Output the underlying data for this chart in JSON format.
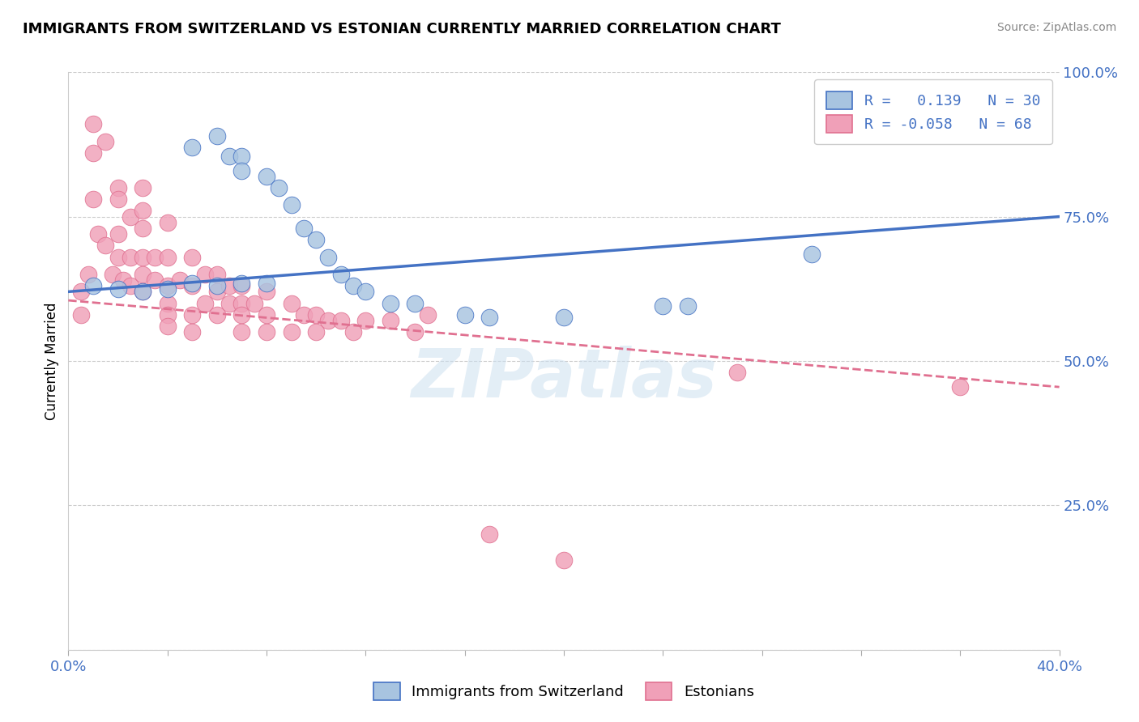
{
  "title": "IMMIGRANTS FROM SWITZERLAND VS ESTONIAN CURRENTLY MARRIED CORRELATION CHART",
  "source": "Source: ZipAtlas.com",
  "ylabel": "Currently Married",
  "xlim": [
    0.0,
    0.4
  ],
  "ylim": [
    0.0,
    1.0
  ],
  "r_blue": 0.139,
  "n_blue": 30,
  "r_pink": -0.058,
  "n_pink": 68,
  "blue_color": "#a8c4e0",
  "pink_color": "#f0a0b8",
  "trend_blue": "#4472c4",
  "trend_pink": "#e07090",
  "watermark": "ZIPatlas",
  "legend_label_blue": "Immigrants from Switzerland",
  "legend_label_pink": "Estonians",
  "blue_scatter_x": [
    0.05,
    0.06,
    0.065,
    0.07,
    0.07,
    0.08,
    0.085,
    0.09,
    0.095,
    0.1,
    0.105,
    0.11,
    0.115,
    0.12,
    0.13,
    0.14,
    0.16,
    0.17,
    0.2,
    0.25,
    0.01,
    0.02,
    0.03,
    0.04,
    0.05,
    0.06,
    0.07,
    0.08,
    0.24,
    0.3
  ],
  "blue_scatter_y": [
    0.87,
    0.89,
    0.855,
    0.855,
    0.83,
    0.82,
    0.8,
    0.77,
    0.73,
    0.71,
    0.68,
    0.65,
    0.63,
    0.62,
    0.6,
    0.6,
    0.58,
    0.575,
    0.575,
    0.595,
    0.63,
    0.625,
    0.62,
    0.625,
    0.635,
    0.63,
    0.635,
    0.635,
    0.595,
    0.685
  ],
  "pink_scatter_x": [
    0.005,
    0.005,
    0.008,
    0.01,
    0.01,
    0.01,
    0.012,
    0.015,
    0.015,
    0.018,
    0.02,
    0.02,
    0.02,
    0.02,
    0.022,
    0.025,
    0.025,
    0.025,
    0.03,
    0.03,
    0.03,
    0.03,
    0.03,
    0.03,
    0.035,
    0.035,
    0.04,
    0.04,
    0.04,
    0.04,
    0.04,
    0.04,
    0.045,
    0.05,
    0.05,
    0.05,
    0.05,
    0.055,
    0.055,
    0.06,
    0.06,
    0.06,
    0.065,
    0.065,
    0.07,
    0.07,
    0.07,
    0.07,
    0.075,
    0.08,
    0.08,
    0.08,
    0.09,
    0.09,
    0.095,
    0.1,
    0.1,
    0.105,
    0.11,
    0.115,
    0.12,
    0.13,
    0.14,
    0.145,
    0.17,
    0.2,
    0.27,
    0.36
  ],
  "pink_scatter_y": [
    0.62,
    0.58,
    0.65,
    0.91,
    0.86,
    0.78,
    0.72,
    0.88,
    0.7,
    0.65,
    0.8,
    0.78,
    0.72,
    0.68,
    0.64,
    0.75,
    0.68,
    0.63,
    0.8,
    0.76,
    0.73,
    0.68,
    0.65,
    0.62,
    0.68,
    0.64,
    0.74,
    0.68,
    0.63,
    0.6,
    0.58,
    0.56,
    0.64,
    0.68,
    0.63,
    0.58,
    0.55,
    0.65,
    0.6,
    0.65,
    0.62,
    0.58,
    0.63,
    0.6,
    0.63,
    0.6,
    0.58,
    0.55,
    0.6,
    0.62,
    0.58,
    0.55,
    0.6,
    0.55,
    0.58,
    0.58,
    0.55,
    0.57,
    0.57,
    0.55,
    0.57,
    0.57,
    0.55,
    0.58,
    0.2,
    0.155,
    0.48,
    0.455
  ],
  "blue_trend_x0": 0.0,
  "blue_trend_y0": 0.62,
  "blue_trend_x1": 0.4,
  "blue_trend_y1": 0.75,
  "pink_trend_x0": 0.0,
  "pink_trend_y0": 0.605,
  "pink_trend_x1": 0.4,
  "pink_trend_y1": 0.455
}
